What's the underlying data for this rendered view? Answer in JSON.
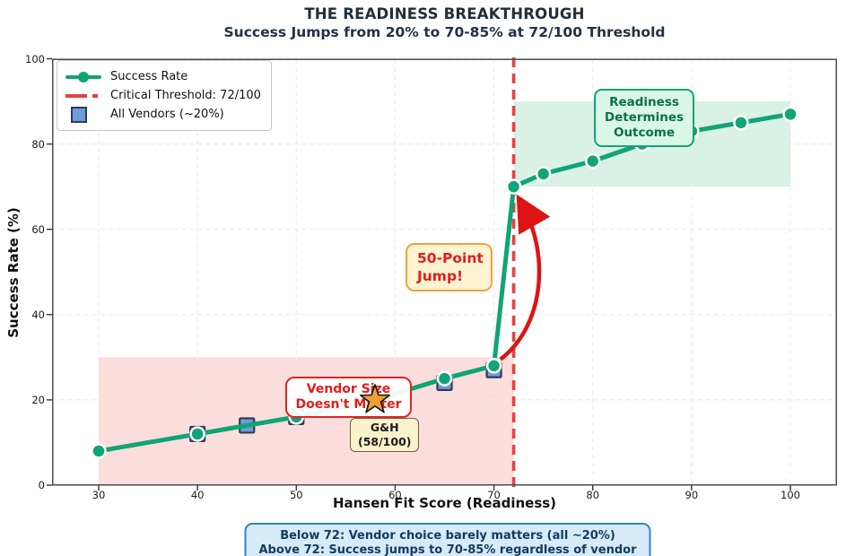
{
  "header": {
    "title": "THE READINESS BREAKTHROUGH",
    "subtitle": "Success Jumps from 20% to 70-85% at 72/100 Threshold"
  },
  "chart_data": {
    "type": "line",
    "xlabel": "Hansen Fit Score (Readiness)",
    "ylabel": "Success Rate (%)",
    "xlim": [
      25.5,
      104.5
    ],
    "ylim": [
      0,
      100
    ],
    "x_ticks": [
      30,
      40,
      50,
      60,
      70,
      80,
      90,
      100
    ],
    "y_ticks": [
      0,
      20,
      40,
      60,
      80,
      100
    ],
    "grid": true,
    "legend_position": "top-left",
    "series": [
      {
        "name": "Success Rate",
        "type": "line",
        "marker": "circle",
        "color": "#10a476",
        "points": [
          [
            30,
            8
          ],
          [
            40,
            12
          ],
          [
            50,
            16
          ],
          [
            58,
            20
          ],
          [
            65,
            25
          ],
          [
            70,
            28
          ],
          [
            72,
            70
          ],
          [
            75,
            73
          ],
          [
            80,
            76
          ],
          [
            85,
            80
          ],
          [
            90,
            83
          ],
          [
            95,
            85
          ],
          [
            100,
            87
          ]
        ]
      },
      {
        "name": "All Vendors (~20%)",
        "type": "scatter",
        "marker": "square",
        "color": "#6c9ce0",
        "points": [
          [
            40,
            12
          ],
          [
            45,
            14
          ],
          [
            50,
            16
          ],
          [
            65,
            24
          ],
          [
            70,
            27
          ]
        ]
      },
      {
        "name": "G&H (58/100)",
        "type": "scatter",
        "marker": "star",
        "color": "#f0a030",
        "points": [
          [
            58,
            20
          ]
        ]
      }
    ],
    "threshold_line": {
      "x": 72,
      "label": "Critical Threshold: 72/100",
      "color": "#e84040",
      "style": "dashed"
    },
    "regions": [
      {
        "name": "below-threshold-zone",
        "x0": 30,
        "x1": 72,
        "y0": 0,
        "y1": 30,
        "color": "#fbdddb"
      },
      {
        "name": "above-threshold-zone",
        "x0": 72,
        "x1": 100,
        "y0": 70,
        "y1": 90,
        "color": "#daf1e5"
      }
    ],
    "jump_arrow": {
      "from": [
        70.3,
        29.5
      ],
      "to": [
        72.5,
        67
      ],
      "color": "#dc1414"
    }
  },
  "legend": {
    "items": [
      {
        "label": "Success Rate"
      },
      {
        "label": "Critical Threshold: 72/100"
      },
      {
        "label": "All Vendors (~20%)"
      }
    ]
  },
  "annotations": {
    "readiness": {
      "lines": [
        "Readiness",
        "Determines",
        "Outcome"
      ]
    },
    "jump": {
      "lines": [
        "50-Point",
        "Jump!"
      ]
    },
    "vendor": {
      "lines": [
        "Vendor Size",
        "Doesn't Matter"
      ]
    },
    "gh": {
      "lines": [
        "G&H",
        "(58/100)"
      ]
    },
    "note": {
      "lines": [
        "Below 72: Vendor choice barely matters (all ~20%)",
        "Above 72: Success jumps to 70-85% regardless of vendor"
      ]
    }
  }
}
